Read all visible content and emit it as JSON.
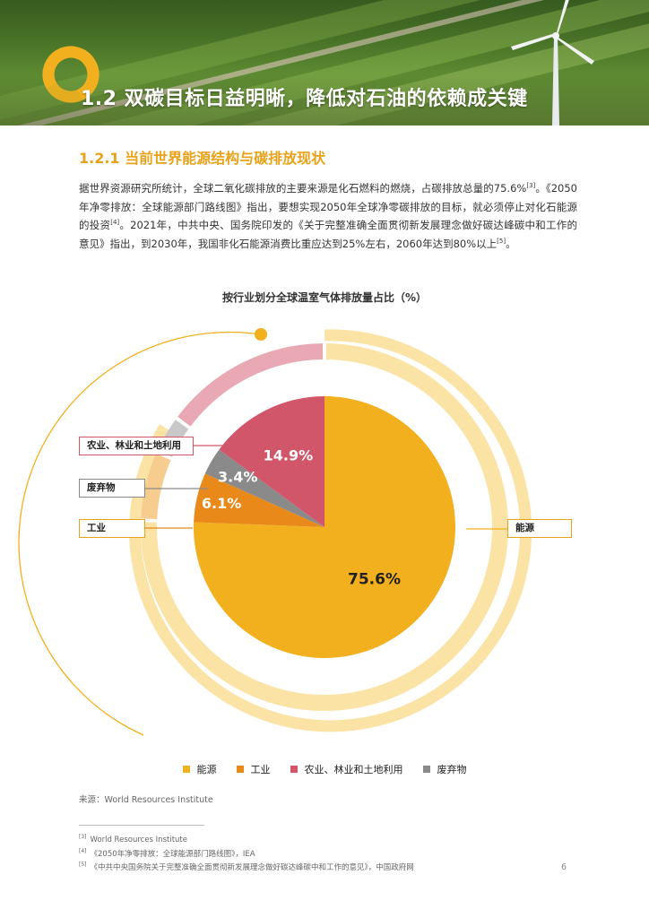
{
  "header": {
    "title": "1.2 双碳目标日益明晰，降低对石油的依赖成关键"
  },
  "section": {
    "title": "1.2.1 当前世界能源结构与碳排放现状",
    "paragraph_parts": [
      "据世界资源研究所统计，全球二氧化碳排放的主要来源是化石燃料的燃烧，占碳排放总量的75.6%",
      "。《2050年净零排放：全球能源部门路线图》指出，要想实现2050年全球净零碳排放的目标，就必须停止对化石能源的投资",
      "。2021年，中共中央、国务院印发的《关于完整准确全面贯彻新发展理念做好碳达峰碳中和工作的意见》指出，到2030年，我国非化石能源消费比重应达到25%左右，2060年达到80%以上",
      "。"
    ],
    "refs": [
      "[3]",
      "[4]",
      "[5]"
    ]
  },
  "chart_data": {
    "type": "pie",
    "title": "按行业划分全球温室气体排放量占比（%）",
    "categories": [
      "能源",
      "工业",
      "农业、林业和土地利用",
      "废弃物"
    ],
    "values": [
      75.6,
      6.1,
      14.9,
      3.4
    ],
    "data_labels": [
      "75.6%",
      "6.1%",
      "14.9%",
      "3.4%"
    ],
    "colors": [
      "#f2b01e",
      "#e8891a",
      "#d2566a",
      "#8a8a8a"
    ],
    "legend_position": "bottom"
  },
  "source": "来源：World Resources Institute",
  "footnotes": [
    {
      "ref": "[3]",
      "text": "World Resources Institute"
    },
    {
      "ref": "[4]",
      "text": "《2050年净零排放：全球能源部门路线图》，IEA"
    },
    {
      "ref": "[5]",
      "text": "《中共中央国务院关于完整准确全面贯彻新发展理念做好碳达峰碳中和工作的意见》，中国政府网"
    }
  ],
  "page_number": "6"
}
